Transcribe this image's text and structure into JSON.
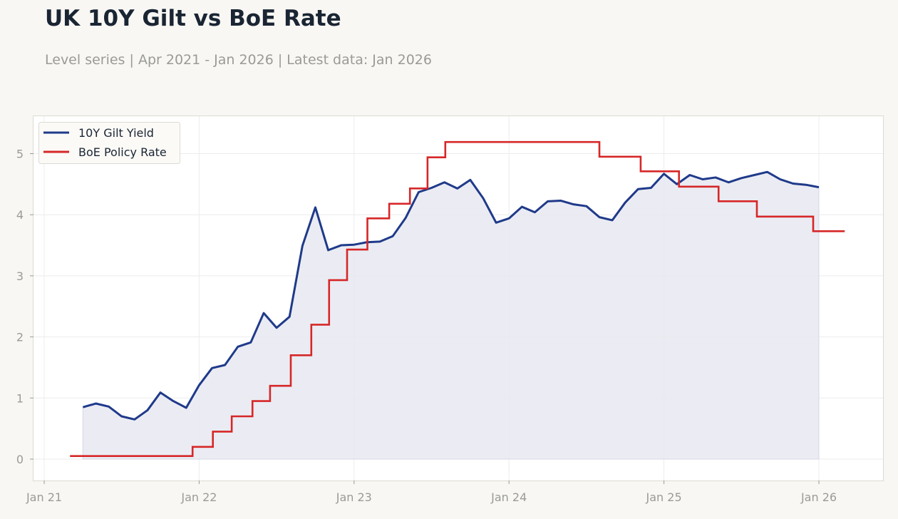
{
  "header": {
    "title": "UK 10Y Gilt vs BoE Rate",
    "subtitle": "Level series | Apr 2021 - Jan 2026 | Latest data: Jan 2026"
  },
  "colors": {
    "gilt": "#1f3a8a",
    "boe": "#d62728",
    "area_fill": "#e8e9f1",
    "grid": "#ececec",
    "plot_bg": "#ffffff",
    "page_bg": "#f8f7f4"
  },
  "chart_data": {
    "type": "line",
    "title": "UK 10Y Gilt vs BoE Rate",
    "xlabel": "",
    "ylabel": "",
    "x_ticks": [
      "Jan 21",
      "Jan 22",
      "Jan 23",
      "Jan 24",
      "Jan 25",
      "Jan 26"
    ],
    "y_ticks": [
      0,
      1,
      2,
      3,
      4,
      5
    ],
    "ylim": [
      -0.35,
      5.6
    ],
    "xlim": [
      "2020-12",
      "2026-04"
    ],
    "grid": true,
    "legend_position": "top-left",
    "series": [
      {
        "name": "10Y Gilt Yield",
        "style": "line-with-area",
        "x": [
          "2021-04",
          "2021-05",
          "2021-06",
          "2021-07",
          "2021-08",
          "2021-09",
          "2021-10",
          "2021-11",
          "2021-12",
          "2022-01",
          "2022-02",
          "2022-03",
          "2022-04",
          "2022-05",
          "2022-06",
          "2022-07",
          "2022-08",
          "2022-09",
          "2022-10",
          "2022-11",
          "2022-12",
          "2023-01",
          "2023-02",
          "2023-03",
          "2023-04",
          "2023-05",
          "2023-06",
          "2023-07",
          "2023-08",
          "2023-09",
          "2023-10",
          "2023-11",
          "2023-12",
          "2024-01",
          "2024-02",
          "2024-03",
          "2024-04",
          "2024-05",
          "2024-06",
          "2024-07",
          "2024-08",
          "2024-09",
          "2024-10",
          "2024-11",
          "2024-12",
          "2025-01",
          "2025-02",
          "2025-03",
          "2025-04",
          "2025-05",
          "2025-06",
          "2025-07",
          "2025-08",
          "2025-09",
          "2025-10",
          "2025-11",
          "2025-12",
          "2026-01"
        ],
        "values": [
          0.85,
          0.91,
          0.86,
          0.7,
          0.65,
          0.8,
          1.09,
          0.95,
          0.84,
          1.21,
          1.49,
          1.54,
          1.84,
          1.91,
          2.39,
          2.15,
          2.33,
          3.49,
          4.12,
          3.42,
          3.5,
          3.51,
          3.55,
          3.56,
          3.65,
          3.95,
          4.37,
          4.44,
          4.53,
          4.43,
          4.57,
          4.27,
          3.87,
          3.94,
          4.13,
          4.04,
          4.22,
          4.23,
          4.17,
          4.14,
          3.96,
          3.91,
          4.2,
          4.42,
          4.44,
          4.67,
          4.5,
          4.65,
          4.58,
          4.61,
          4.53,
          4.6,
          4.65,
          4.7,
          4.58,
          4.51,
          4.49,
          4.45
        ]
      },
      {
        "name": "BoE Policy Rate",
        "style": "step",
        "x": [
          "2021-03",
          "2021-12-16",
          "2022-02-03",
          "2022-03-17",
          "2022-05-05",
          "2022-06-16",
          "2022-08-04",
          "2022-09-22",
          "2022-11-03",
          "2022-12-15",
          "2023-02-02",
          "2023-03-23",
          "2023-05-11",
          "2023-06-22",
          "2023-08-03",
          "2024-08-01",
          "2024-11-07",
          "2025-02-06",
          "2025-05-08",
          "2025-08-07",
          "2025-12-18",
          "2026-03"
        ],
        "values": [
          0.05,
          0.2,
          0.45,
          0.7,
          0.95,
          1.2,
          1.7,
          2.2,
          2.93,
          3.43,
          3.94,
          4.18,
          4.43,
          4.94,
          5.19,
          4.95,
          4.71,
          4.46,
          4.22,
          3.97,
          3.73,
          3.73
        ]
      }
    ]
  }
}
